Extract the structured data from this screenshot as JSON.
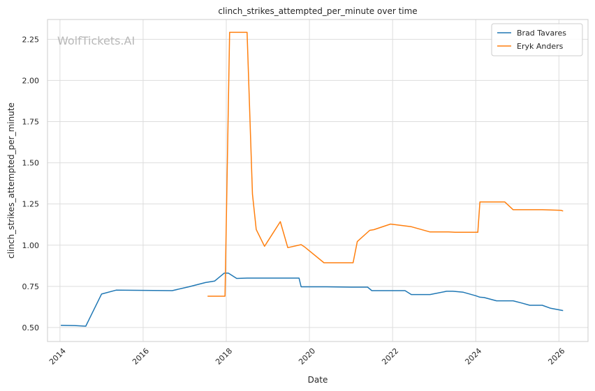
{
  "chart_data": {
    "type": "line",
    "title": "clinch_strikes_attempted_per_minute over time",
    "xlabel": "Date",
    "ylabel": "clinch_strikes_attempted_per_minute",
    "watermark": "WolfTickets.AI",
    "xlim": [
      2013.7,
      2026.7
    ],
    "ylim": [
      0.415,
      2.37
    ],
    "x_ticks": [
      2014,
      2016,
      2018,
      2020,
      2022,
      2024,
      2026
    ],
    "y_ticks": [
      0.5,
      0.75,
      1.0,
      1.25,
      1.5,
      1.75,
      2.0,
      2.25
    ],
    "y_tick_labels": [
      "0.50",
      "0.75",
      "1.00",
      "1.25",
      "1.50",
      "1.75",
      "2.00",
      "2.25"
    ],
    "grid": true,
    "legend_position": "top-right",
    "series": [
      {
        "name": "Brad Tavares",
        "color": "#1f77b4",
        "x": [
          2014.02,
          2014.35,
          2014.62,
          2015.0,
          2015.35,
          2016.7,
          2017.1,
          2017.5,
          2017.72,
          2017.95,
          2018.05,
          2018.25,
          2018.5,
          2019.3,
          2019.75,
          2019.8,
          2020.4,
          2021.0,
          2021.4,
          2021.5,
          2021.7,
          2022.3,
          2022.45,
          2022.9,
          2023.3,
          2023.45,
          2023.7,
          2024.0,
          2024.1,
          2024.2,
          2024.5,
          2024.9,
          2025.1,
          2025.3,
          2025.6,
          2025.8,
          2026.1
        ],
        "values": [
          0.513,
          0.512,
          0.508,
          0.703,
          0.727,
          0.724,
          0.747,
          0.773,
          0.782,
          0.83,
          0.83,
          0.798,
          0.8,
          0.8,
          0.8,
          0.747,
          0.747,
          0.745,
          0.745,
          0.724,
          0.724,
          0.724,
          0.7,
          0.7,
          0.72,
          0.72,
          0.714,
          0.693,
          0.684,
          0.682,
          0.662,
          0.662,
          0.649,
          0.635,
          0.635,
          0.617,
          0.603
        ]
      },
      {
        "name": "Eryk Anders",
        "color": "#ff7f0e",
        "x": [
          2017.55,
          2017.97,
          2018.08,
          2018.5,
          2018.63,
          2018.72,
          2018.92,
          2019.3,
          2019.48,
          2019.8,
          2019.88,
          2020.35,
          2021.05,
          2021.15,
          2021.45,
          2021.55,
          2021.95,
          2022.45,
          2022.9,
          2023.35,
          2023.5,
          2024.05,
          2024.1,
          2024.7,
          2024.9,
          2025.6,
          2026.05,
          2026.1
        ],
        "values": [
          0.69,
          0.69,
          2.292,
          2.292,
          1.31,
          1.095,
          0.993,
          1.143,
          0.985,
          1.003,
          0.99,
          0.893,
          0.893,
          1.022,
          1.09,
          1.094,
          1.128,
          1.112,
          1.08,
          1.08,
          1.078,
          1.078,
          1.262,
          1.262,
          1.215,
          1.215,
          1.212,
          1.207
        ]
      }
    ]
  }
}
